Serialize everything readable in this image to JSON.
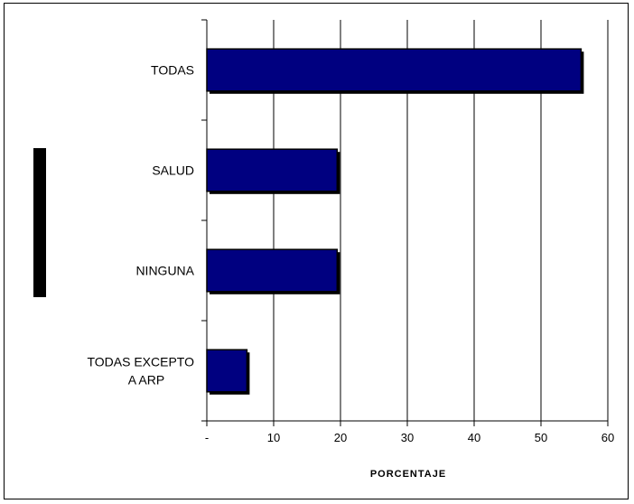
{
  "chart_data": {
    "type": "bar",
    "orientation": "horizontal",
    "categories": [
      "TODAS",
      "SALUD",
      "NINGUNA",
      "TODAS EXCEPTO A ARP"
    ],
    "category_lines": [
      [
        "TODAS"
      ],
      [
        "SALUD"
      ],
      [
        "NINGUNA"
      ],
      [
        "TODAS EXCEPTO",
        "A ARP"
      ]
    ],
    "values": [
      56,
      19.5,
      19.5,
      6
    ],
    "xlabel": "PORCENTAJE",
    "xlim": [
      0,
      60
    ],
    "xticks": [
      0,
      10,
      20,
      30,
      40,
      50,
      60
    ],
    "xtick_labels": [
      "-",
      "10",
      "20",
      "30",
      "40",
      "50",
      "60"
    ],
    "grid": "vertical",
    "bar_color": "#000080",
    "bar_edge_color": "#000000",
    "shadow_color": "#000000",
    "legend": "left"
  }
}
